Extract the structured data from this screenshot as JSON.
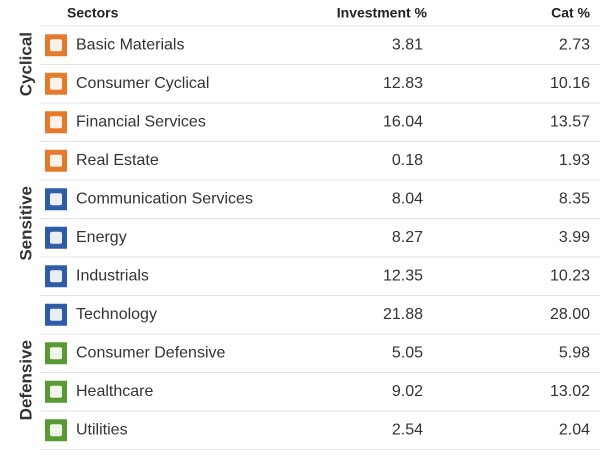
{
  "header": {
    "sectors": "Sectors",
    "investment": "Investment %",
    "cat": "Cat %"
  },
  "groups": [
    {
      "label": "Cyclical",
      "color": "#c0561e",
      "icon_color": "#e57a2c",
      "rows": [
        {
          "sector": "Basic Materials",
          "investment": "3.81",
          "cat": "2.73"
        },
        {
          "sector": "Consumer Cyclical",
          "investment": "12.83",
          "cat": "10.16"
        },
        {
          "sector": "Financial Services",
          "investment": "16.04",
          "cat": "13.57"
        },
        {
          "sector": "Real Estate",
          "investment": "0.18",
          "cat": "1.93"
        }
      ]
    },
    {
      "label": "Sensitive",
      "color": "#2a4c9c",
      "icon_color": "#2f5ca6",
      "rows": [
        {
          "sector": "Communication Services",
          "investment": "8.04",
          "cat": "8.35"
        },
        {
          "sector": "Energy",
          "investment": "8.27",
          "cat": "3.99"
        },
        {
          "sector": "Industrials",
          "investment": "12.35",
          "cat": "10.23"
        },
        {
          "sector": "Technology",
          "investment": "21.88",
          "cat": "28.00"
        }
      ]
    },
    {
      "label": "Defensive",
      "color": "#4e8a2a",
      "icon_color": "#5a9a32",
      "rows": [
        {
          "sector": "Consumer Defensive",
          "investment": "5.05",
          "cat": "5.98"
        },
        {
          "sector": "Healthcare",
          "investment": "9.02",
          "cat": "13.02"
        },
        {
          "sector": "Utilities",
          "investment": "2.54",
          "cat": "2.04"
        }
      ]
    }
  ]
}
